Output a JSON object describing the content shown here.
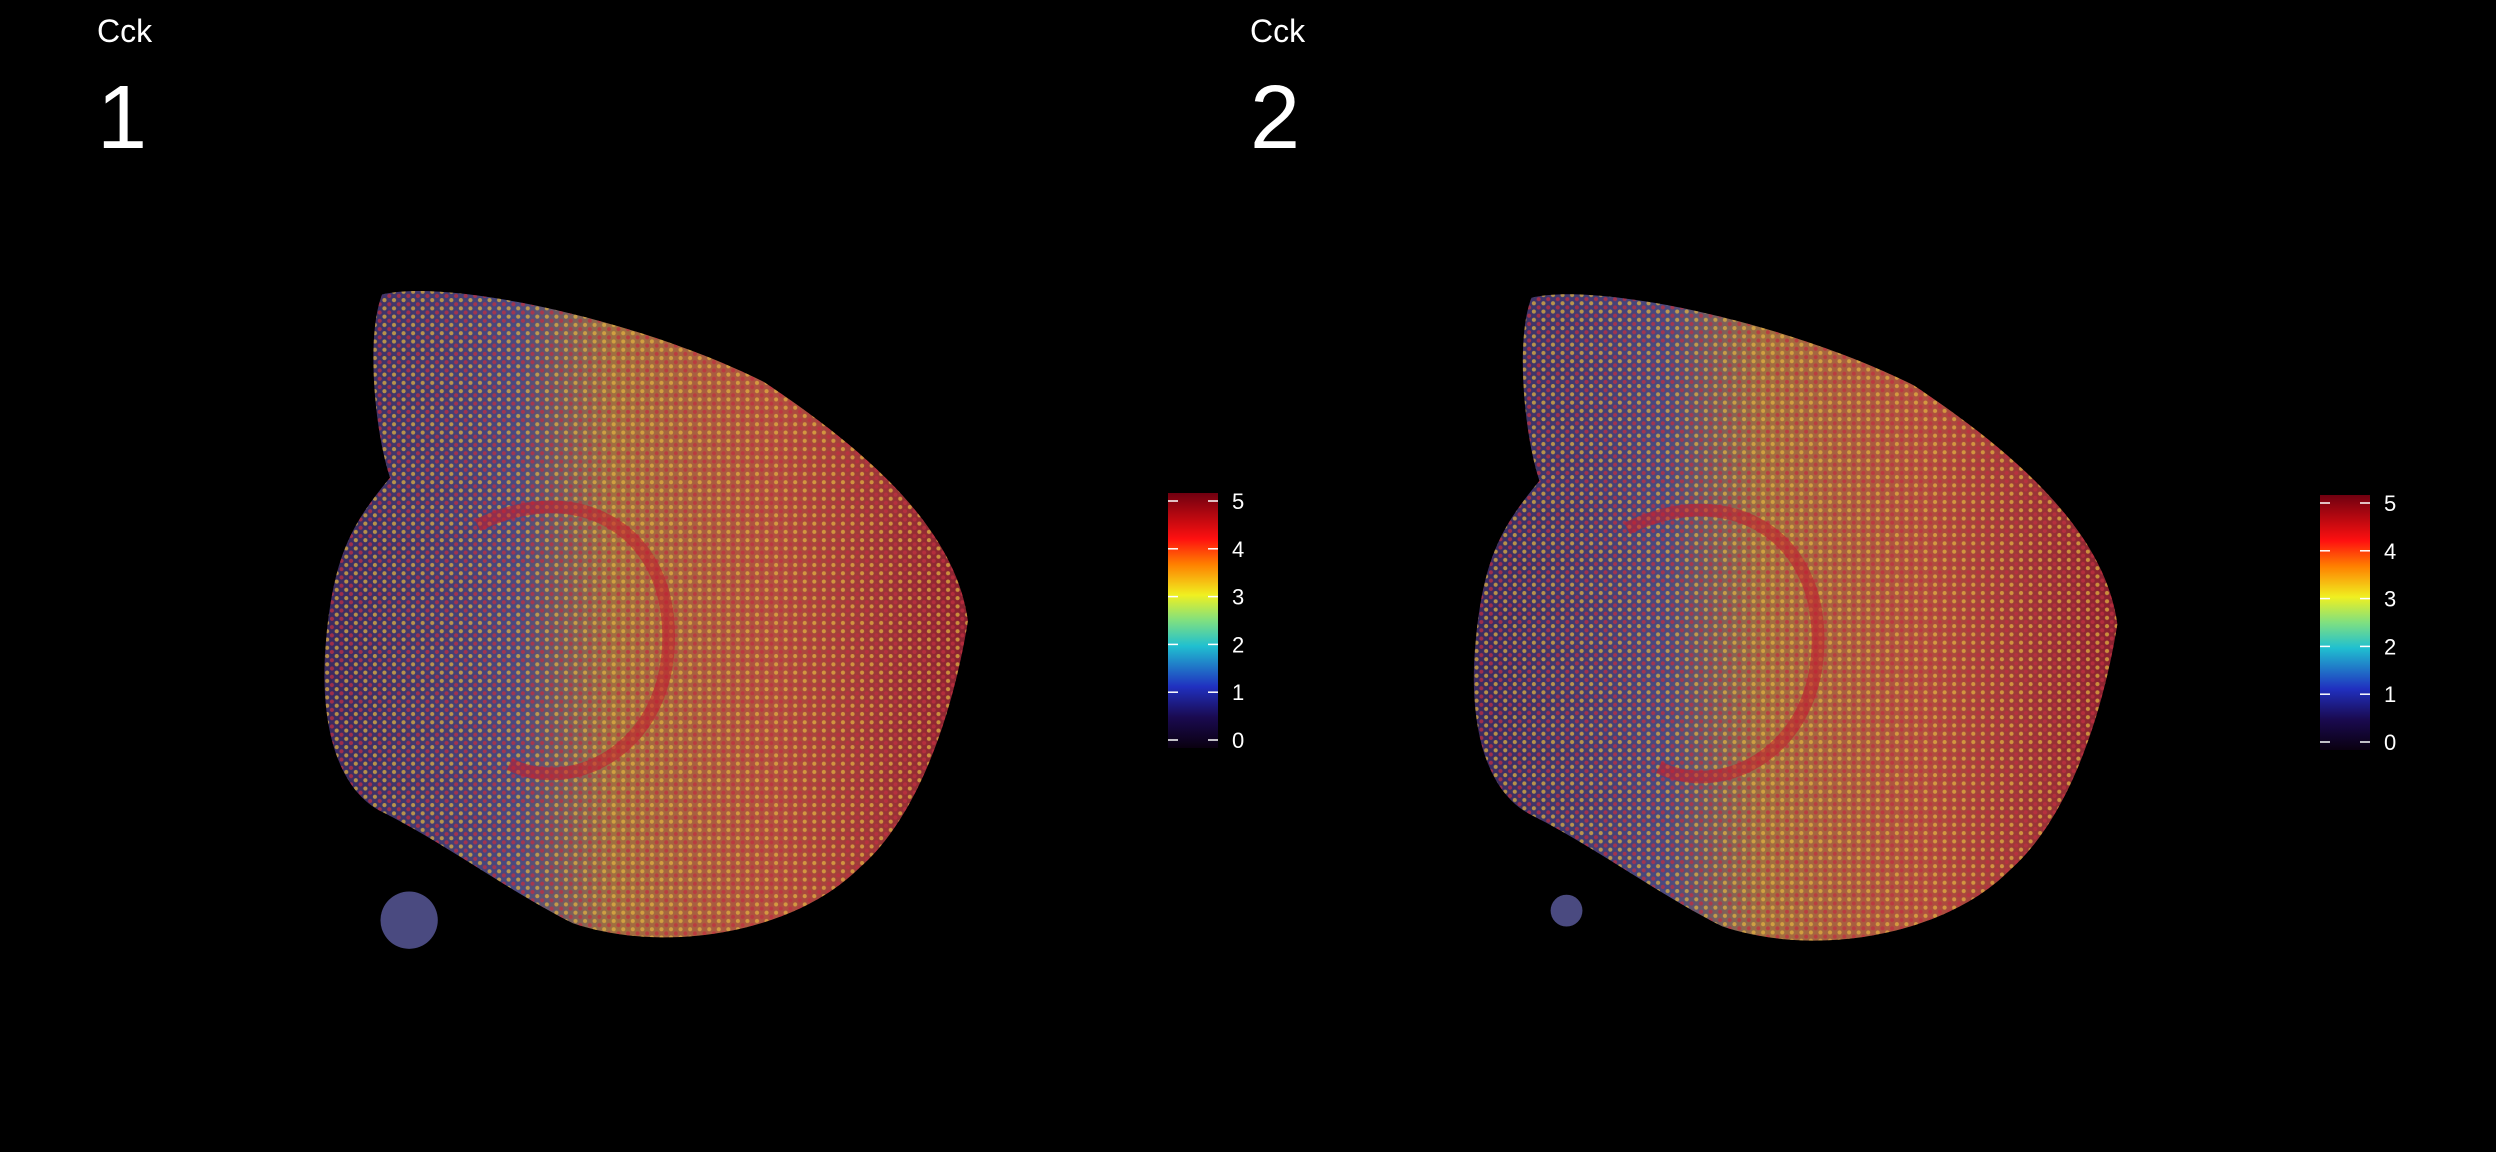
{
  "panels": [
    {
      "gene": "Cck",
      "sample": "1",
      "colorbar": {
        "ticks": [
          0,
          1,
          2,
          3,
          4,
          5
        ]
      }
    },
    {
      "gene": "Cck",
      "sample": "2",
      "colorbar": {
        "ticks": [
          0,
          1,
          2,
          3,
          4,
          5
        ]
      }
    }
  ]
}
